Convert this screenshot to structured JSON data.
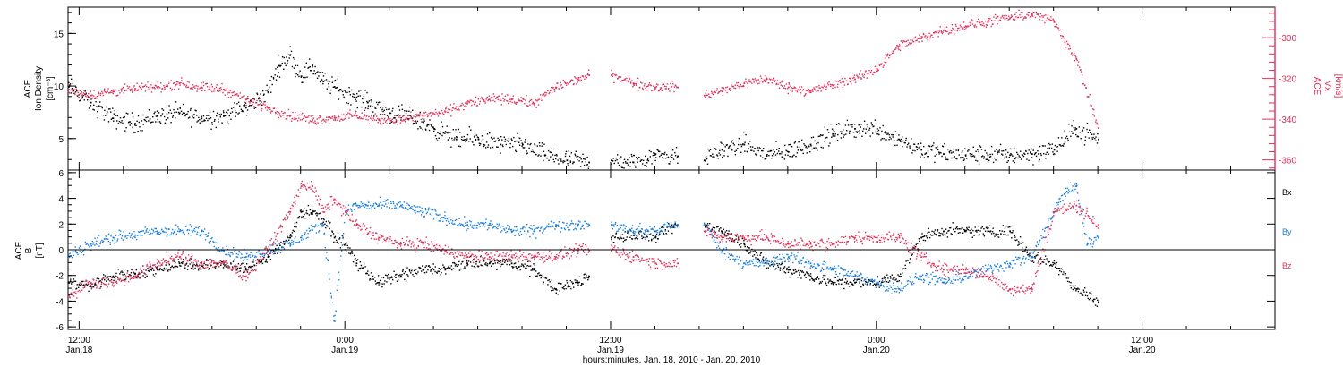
{
  "figure": {
    "xlabel": "hours:minutes, Jan. 18, 2010 - Jan. 20, 2010",
    "x_range_hours": [
      -0.5,
      54.0
    ],
    "x_ticks": [
      {
        "hours": 0,
        "time": "12:00",
        "date": "Jan.18"
      },
      {
        "hours": 12,
        "time": "0:00",
        "date": "Jan.19"
      },
      {
        "hours": 24,
        "time": "12:00",
        "date": "Jan.19"
      },
      {
        "hours": 36,
        "time": "0:00",
        "date": "Jan.20"
      },
      {
        "hours": 48,
        "time": "12:00",
        "date": "Jan.20"
      }
    ],
    "data_gaps_hours": [
      [
        23.0,
        24.0
      ],
      [
        27.0,
        28.2
      ]
    ],
    "data_end_hours": 46.0
  },
  "colors": {
    "black": "#000000",
    "red": "#e0305a",
    "blue": "#1a7fe0"
  },
  "chart_data": [
    {
      "type": "scatter",
      "panel": "density-velocity",
      "ylabel_left": [
        "ACE",
        "Ion Density",
        "[cm⁻³]"
      ],
      "ylabel_right": [
        "ACE",
        "Vx",
        "[km/s]"
      ],
      "ylim_left": [
        2,
        17.5
      ],
      "yticks_left": [
        5,
        10,
        15
      ],
      "ylim_right": [
        -365,
        -285
      ],
      "yticks_right": [
        -360,
        -340,
        -320,
        -300
      ],
      "series": [
        {
          "axis": "left",
          "color": "black",
          "x": [
            -0.5,
            0.5,
            1.5,
            2.5,
            3.5,
            4.5,
            5.5,
            6.5,
            7.5,
            8.5,
            9.0,
            9.5,
            10.0,
            10.5,
            11.0,
            11.5,
            12.0,
            12.5,
            13.0,
            14.0,
            15.0,
            16.0,
            17.0,
            18.0,
            19.0,
            20.0,
            21.0,
            22.0,
            23.0,
            24.0,
            25.0,
            26.0,
            27.0,
            28.2,
            29.0,
            30.0,
            31.0,
            32.0,
            33.0,
            34.0,
            35.0,
            36.0,
            37.0,
            38.0,
            39.0,
            40.0,
            41.0,
            42.0,
            43.0,
            44.0,
            45.0,
            46.0
          ],
          "y": [
            10,
            8.5,
            7,
            6.5,
            7.2,
            7.5,
            7,
            7.2,
            8,
            9.5,
            12,
            13,
            11,
            12,
            10.5,
            10,
            9.5,
            9,
            8.5,
            7.5,
            7,
            6,
            5,
            5,
            4.5,
            4.5,
            3.5,
            3,
            2.8,
            3,
            2.8,
            3.6,
            3.4,
            3,
            4,
            4.5,
            3.5,
            3.8,
            4.5,
            5.5,
            6,
            6,
            5,
            4,
            3.6,
            3.5,
            3.5,
            3.5,
            3.6,
            4,
            6,
            5
          ]
        },
        {
          "axis": "right",
          "color": "red",
          "x": [
            -0.5,
            0.5,
            1.5,
            2.5,
            3.5,
            4.5,
            5.5,
            6.5,
            7.5,
            8.5,
            9.5,
            10.5,
            11.5,
            12.5,
            13.5,
            14.5,
            15.5,
            16.5,
            17.5,
            18.5,
            19.5,
            20.5,
            21.5,
            22.5,
            23.0,
            24.0,
            25.0,
            26.0,
            27.0,
            28.2,
            29.0,
            30.0,
            31.0,
            32.0,
            33.0,
            34.0,
            35.0,
            36.0,
            37.0,
            38.0,
            39.0,
            40.0,
            41.0,
            42.0,
            43.0,
            44.0,
            45.0,
            46.0
          ],
          "y": [
            -325,
            -328,
            -326,
            -325,
            -324,
            -322,
            -324,
            -325,
            -330,
            -334,
            -338,
            -340,
            -339,
            -338,
            -340,
            -340,
            -338,
            -336,
            -332,
            -330,
            -330,
            -332,
            -324,
            -320,
            -318,
            -318,
            -322,
            -324,
            -324,
            -328,
            -326,
            -322,
            -320,
            -324,
            -326,
            -323,
            -320,
            -315,
            -304,
            -300,
            -296,
            -294,
            -292,
            -290,
            -288,
            -292,
            -310,
            -344
          ]
        }
      ]
    },
    {
      "type": "scatter",
      "panel": "magnetic-field",
      "ylabel_left": [
        "ACE",
        "B",
        "[nT]"
      ],
      "ylim": [
        -6.2,
        6.2
      ],
      "yticks": [
        -6,
        -4,
        -2,
        0,
        2,
        4,
        6
      ],
      "zero_line": true,
      "legend": "right",
      "series": [
        {
          "name": "Bx",
          "color": "black",
          "x": [
            -0.5,
            0.5,
            1.5,
            2.5,
            3.5,
            4.5,
            5.5,
            6.5,
            7.5,
            8.5,
            9.5,
            10.0,
            10.5,
            11.0,
            11.5,
            12.0,
            12.5,
            13.5,
            14.5,
            15.5,
            16.5,
            17.5,
            18.5,
            19.5,
            20.5,
            21.5,
            22.5,
            23.0,
            24.0,
            25.0,
            26.0,
            27.0,
            28.2,
            29.0,
            30.0,
            31.0,
            32.0,
            33.0,
            34.0,
            35.0,
            36.0,
            37.0,
            38.0,
            39.0,
            40.0,
            41.0,
            42.0,
            43.0,
            44.0,
            45.0,
            46.0
          ],
          "y": [
            -2.5,
            -2.8,
            -2,
            -1.8,
            -1.5,
            -1,
            -1.2,
            -1,
            -1.5,
            -0.5,
            1,
            3,
            3,
            2.5,
            1,
            0.5,
            -1,
            -2.5,
            -2,
            -1.5,
            -1.5,
            -1,
            -1,
            -1,
            -1.5,
            -3,
            -2.5,
            -2,
            1,
            1.2,
            1,
            2,
            2,
            1.5,
            0.5,
            -1,
            -1.5,
            -2,
            -2.5,
            -2.5,
            -2.5,
            -2,
            1,
            1.5,
            1.5,
            1.5,
            1.5,
            -0.5,
            -1,
            -3,
            -4
          ]
        },
        {
          "name": "By",
          "color": "blue",
          "x": [
            -0.5,
            0.5,
            1.5,
            2.5,
            3.5,
            4.5,
            5.5,
            6.5,
            7.5,
            8.5,
            9.5,
            10.0,
            11.0,
            11.5,
            12.0,
            12.5,
            13.0,
            13.5,
            14.5,
            15.5,
            16.5,
            17.5,
            18.5,
            19.5,
            20.5,
            21.5,
            22.5,
            23.0,
            24.0,
            25.0,
            26.0,
            27.0,
            28.2,
            29.0,
            30.0,
            31.0,
            32.0,
            33.0,
            34.0,
            35.0,
            36.0,
            37.0,
            38.0,
            39.0,
            40.0,
            41.0,
            42.0,
            43.0,
            44.0,
            44.5,
            45.0,
            45.5,
            46.0
          ],
          "y": [
            -0.5,
            0.5,
            1,
            1.2,
            1.5,
            1.5,
            1.5,
            0,
            -0.5,
            0,
            0.5,
            1,
            2,
            -5.5,
            3,
            3.5,
            3.5,
            3.5,
            3.5,
            3,
            2.5,
            2,
            2,
            1.5,
            1.5,
            2,
            2,
            2,
            2,
            1.5,
            1.5,
            2,
            2,
            0,
            -1,
            -1,
            -0.5,
            -1,
            -1.5,
            -2,
            -2.5,
            -3,
            -2,
            -2.5,
            -2,
            -1.5,
            -1,
            -0.5,
            3,
            4.5,
            5,
            0.5,
            1
          ]
        },
        {
          "name": "Bz",
          "color": "red",
          "x": [
            -0.5,
            0.5,
            1.5,
            2.5,
            3.5,
            4.5,
            5.5,
            6.5,
            7.5,
            8.5,
            9.5,
            10.0,
            10.5,
            11.0,
            11.5,
            12.0,
            12.5,
            13.5,
            14.5,
            15.5,
            16.5,
            17.5,
            18.5,
            19.5,
            20.5,
            21.5,
            22.5,
            23.0,
            24.0,
            25.0,
            26.0,
            27.0,
            28.2,
            29.0,
            30.0,
            31.0,
            32.0,
            33.0,
            34.0,
            35.0,
            36.0,
            37.0,
            38.0,
            39.0,
            40.0,
            41.0,
            42.0,
            43.0,
            44.0,
            45.0,
            46.0
          ],
          "y": [
            -3.5,
            -2.5,
            -2.5,
            -2,
            -1,
            -0.5,
            -1,
            -1,
            -2,
            0,
            3,
            5,
            5,
            3,
            4,
            3,
            2,
            1,
            0.5,
            0.5,
            0,
            -0.5,
            -0.5,
            -0.5,
            -0.5,
            -0.5,
            0,
            0,
            0,
            -0.5,
            -1,
            -1,
            1.5,
            1,
            1,
            1,
            0.5,
            0.5,
            0.5,
            1,
            1,
            1,
            -0.5,
            -1.5,
            -1.5,
            -2,
            -3,
            -3,
            3,
            3.5,
            2
          ]
        }
      ]
    }
  ]
}
